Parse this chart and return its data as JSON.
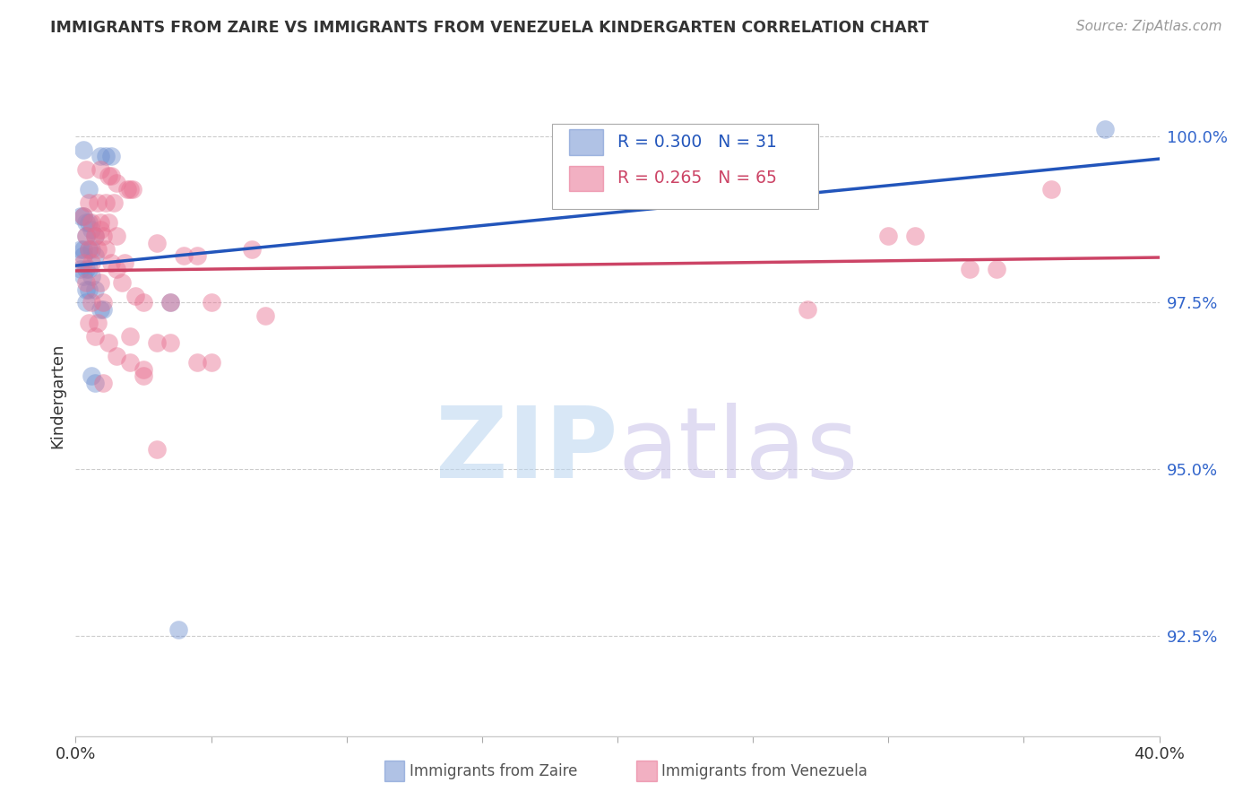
{
  "title": "IMMIGRANTS FROM ZAIRE VS IMMIGRANTS FROM VENEZUELA KINDERGARTEN CORRELATION CHART",
  "source": "Source: ZipAtlas.com",
  "ylabel": "Kindergarten",
  "ytick_values": [
    92.5,
    95.0,
    97.5,
    100.0
  ],
  "xlim": [
    0.0,
    40.0
  ],
  "ylim": [
    91.0,
    101.2
  ],
  "zaire_color": "#7090d0",
  "venezuela_color": "#e87090",
  "zaire_line_color": "#2255bb",
  "venezuela_line_color": "#cc4466",
  "zaire_points": [
    [
      0.3,
      99.8
    ],
    [
      0.9,
      99.7
    ],
    [
      1.1,
      99.7
    ],
    [
      1.3,
      99.7
    ],
    [
      0.5,
      99.2
    ],
    [
      0.2,
      98.8
    ],
    [
      0.3,
      98.8
    ],
    [
      0.4,
      98.7
    ],
    [
      0.5,
      98.7
    ],
    [
      0.6,
      98.6
    ],
    [
      0.4,
      98.5
    ],
    [
      0.7,
      98.5
    ],
    [
      0.2,
      98.3
    ],
    [
      0.3,
      98.3
    ],
    [
      0.5,
      98.3
    ],
    [
      0.6,
      98.3
    ],
    [
      0.3,
      98.2
    ],
    [
      0.7,
      98.2
    ],
    [
      0.2,
      98.0
    ],
    [
      0.4,
      98.0
    ],
    [
      0.5,
      98.0
    ],
    [
      0.3,
      97.9
    ],
    [
      0.6,
      97.9
    ],
    [
      0.4,
      97.7
    ],
    [
      0.5,
      97.7
    ],
    [
      0.7,
      97.7
    ],
    [
      0.4,
      97.5
    ],
    [
      0.9,
      97.4
    ],
    [
      1.0,
      97.4
    ],
    [
      0.6,
      96.4
    ],
    [
      0.7,
      96.3
    ],
    [
      3.5,
      97.5
    ],
    [
      3.8,
      92.6
    ],
    [
      38.0,
      100.1
    ]
  ],
  "venezuela_points": [
    [
      0.4,
      99.5
    ],
    [
      0.9,
      99.5
    ],
    [
      1.2,
      99.4
    ],
    [
      1.3,
      99.4
    ],
    [
      1.5,
      99.3
    ],
    [
      1.9,
      99.2
    ],
    [
      2.0,
      99.2
    ],
    [
      2.1,
      99.2
    ],
    [
      0.5,
      99.0
    ],
    [
      0.8,
      99.0
    ],
    [
      1.1,
      99.0
    ],
    [
      1.4,
      99.0
    ],
    [
      0.3,
      98.8
    ],
    [
      0.6,
      98.7
    ],
    [
      0.9,
      98.7
    ],
    [
      1.2,
      98.7
    ],
    [
      0.4,
      98.5
    ],
    [
      0.7,
      98.5
    ],
    [
      1.0,
      98.5
    ],
    [
      1.5,
      98.5
    ],
    [
      0.5,
      98.3
    ],
    [
      0.8,
      98.3
    ],
    [
      1.1,
      98.3
    ],
    [
      0.3,
      98.1
    ],
    [
      0.6,
      98.1
    ],
    [
      1.3,
      98.1
    ],
    [
      0.4,
      97.8
    ],
    [
      0.9,
      97.8
    ],
    [
      1.7,
      97.8
    ],
    [
      3.0,
      98.4
    ],
    [
      4.0,
      98.2
    ],
    [
      4.5,
      98.2
    ],
    [
      5.0,
      97.5
    ],
    [
      6.5,
      98.3
    ],
    [
      0.6,
      97.5
    ],
    [
      1.0,
      97.5
    ],
    [
      2.5,
      97.5
    ],
    [
      3.5,
      97.5
    ],
    [
      7.0,
      97.3
    ],
    [
      0.5,
      97.2
    ],
    [
      0.8,
      97.2
    ],
    [
      2.0,
      97.0
    ],
    [
      3.0,
      96.9
    ],
    [
      3.5,
      96.9
    ],
    [
      1.5,
      96.7
    ],
    [
      4.5,
      96.6
    ],
    [
      5.0,
      96.6
    ],
    [
      2.5,
      96.4
    ],
    [
      27.0,
      97.4
    ],
    [
      30.0,
      98.5
    ],
    [
      31.0,
      98.5
    ],
    [
      33.0,
      98.0
    ],
    [
      34.0,
      98.0
    ],
    [
      36.0,
      99.2
    ],
    [
      0.7,
      97.0
    ],
    [
      1.2,
      96.9
    ],
    [
      2.0,
      96.6
    ],
    [
      2.5,
      96.5
    ],
    [
      1.0,
      96.3
    ],
    [
      3.0,
      95.3
    ],
    [
      1.5,
      98.0
    ],
    [
      2.2,
      97.6
    ],
    [
      0.9,
      98.6
    ],
    [
      1.8,
      98.1
    ]
  ]
}
